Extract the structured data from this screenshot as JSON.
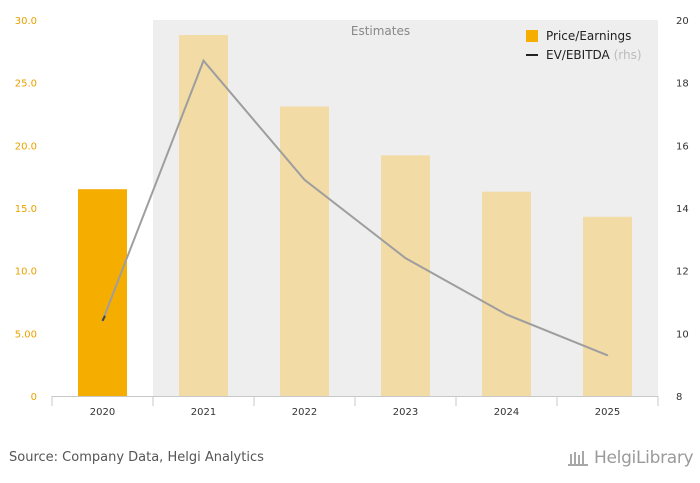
{
  "chart_data": {
    "type": "bar",
    "categories": [
      "2020",
      "2021",
      "2022",
      "2023",
      "2024",
      "2025"
    ],
    "series": [
      {
        "name": "Price/Earnings",
        "axis": "left",
        "type": "bar",
        "values": [
          16.5,
          28.8,
          23.1,
          19.2,
          16.3,
          14.3
        ]
      },
      {
        "name": "EV/EBITDA",
        "axis": "right",
        "type": "line",
        "values": [
          10.4,
          18.7,
          14.9,
          12.4,
          10.6,
          9.3
        ]
      }
    ],
    "legend_suffix": "(rhs)",
    "y_left": {
      "min": 0,
      "max": 30,
      "ticks": [
        "0",
        "5.00",
        "10.0",
        "15.0",
        "20.0",
        "25.0",
        "30.0"
      ]
    },
    "y_right": {
      "min": 8,
      "max": 20,
      "ticks": [
        "8",
        "10",
        "12",
        "14",
        "16",
        "18",
        "20"
      ]
    },
    "estimates_label": "Estimates",
    "estimates_from_index": 1,
    "legend_position": "top-right",
    "colors": {
      "actual_bar": "#f5ad00",
      "estimate_bar": "#f2dba5",
      "line": "#9e9e9e",
      "estimate_band": "#eeeeee",
      "left_axis_labels": "#e8a200",
      "right_axis_labels": "#333333"
    }
  },
  "footer": {
    "source": "Source: Company Data, Helgi Analytics",
    "logo_text": "HelgiLibrary"
  }
}
